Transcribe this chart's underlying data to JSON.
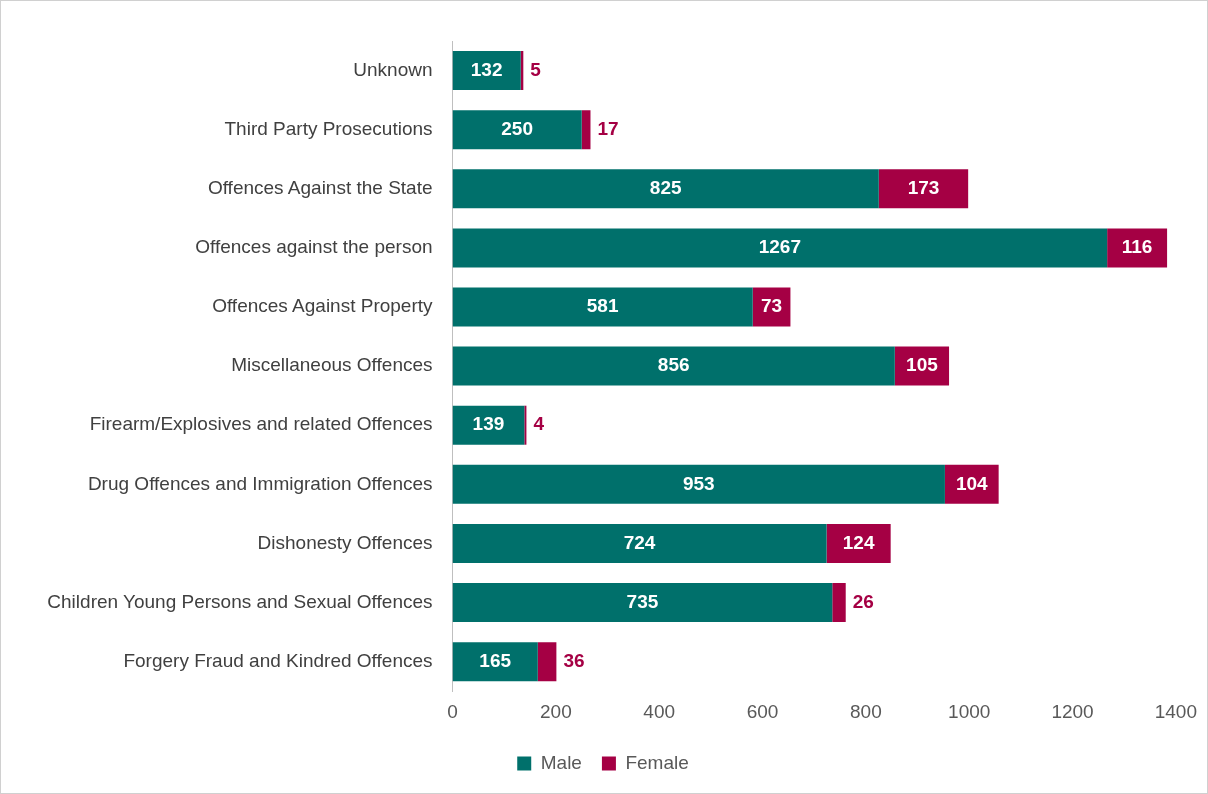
{
  "chart_data": {
    "type": "bar",
    "orientation": "horizontal",
    "stacked": true,
    "categories": [
      "Unknown",
      "Third Party Prosecutions",
      "Offences Against the State",
      "Offences against the person",
      "Offences Against Property",
      "Miscellaneous Offences",
      "Firearm/Explosives and related Offences",
      "Drug Offences and Immigration Offences",
      "Dishonesty Offences",
      "Children Young Persons and Sexual Offences",
      "Forgery Fraud and Kindred Offences"
    ],
    "series": [
      {
        "name": "Male",
        "color": "#00706b",
        "values": [
          132,
          250,
          825,
          1267,
          581,
          856,
          139,
          953,
          724,
          735,
          165
        ]
      },
      {
        "name": "Female",
        "color": "#a50044",
        "values": [
          5,
          17,
          173,
          116,
          73,
          105,
          4,
          104,
          124,
          26,
          36
        ]
      }
    ],
    "xlim": [
      0,
      1400
    ],
    "xticks": [
      0,
      200,
      400,
      600,
      800,
      1000,
      1200,
      1400
    ],
    "grid": false,
    "legend": "bottom",
    "data_labels": true
  }
}
